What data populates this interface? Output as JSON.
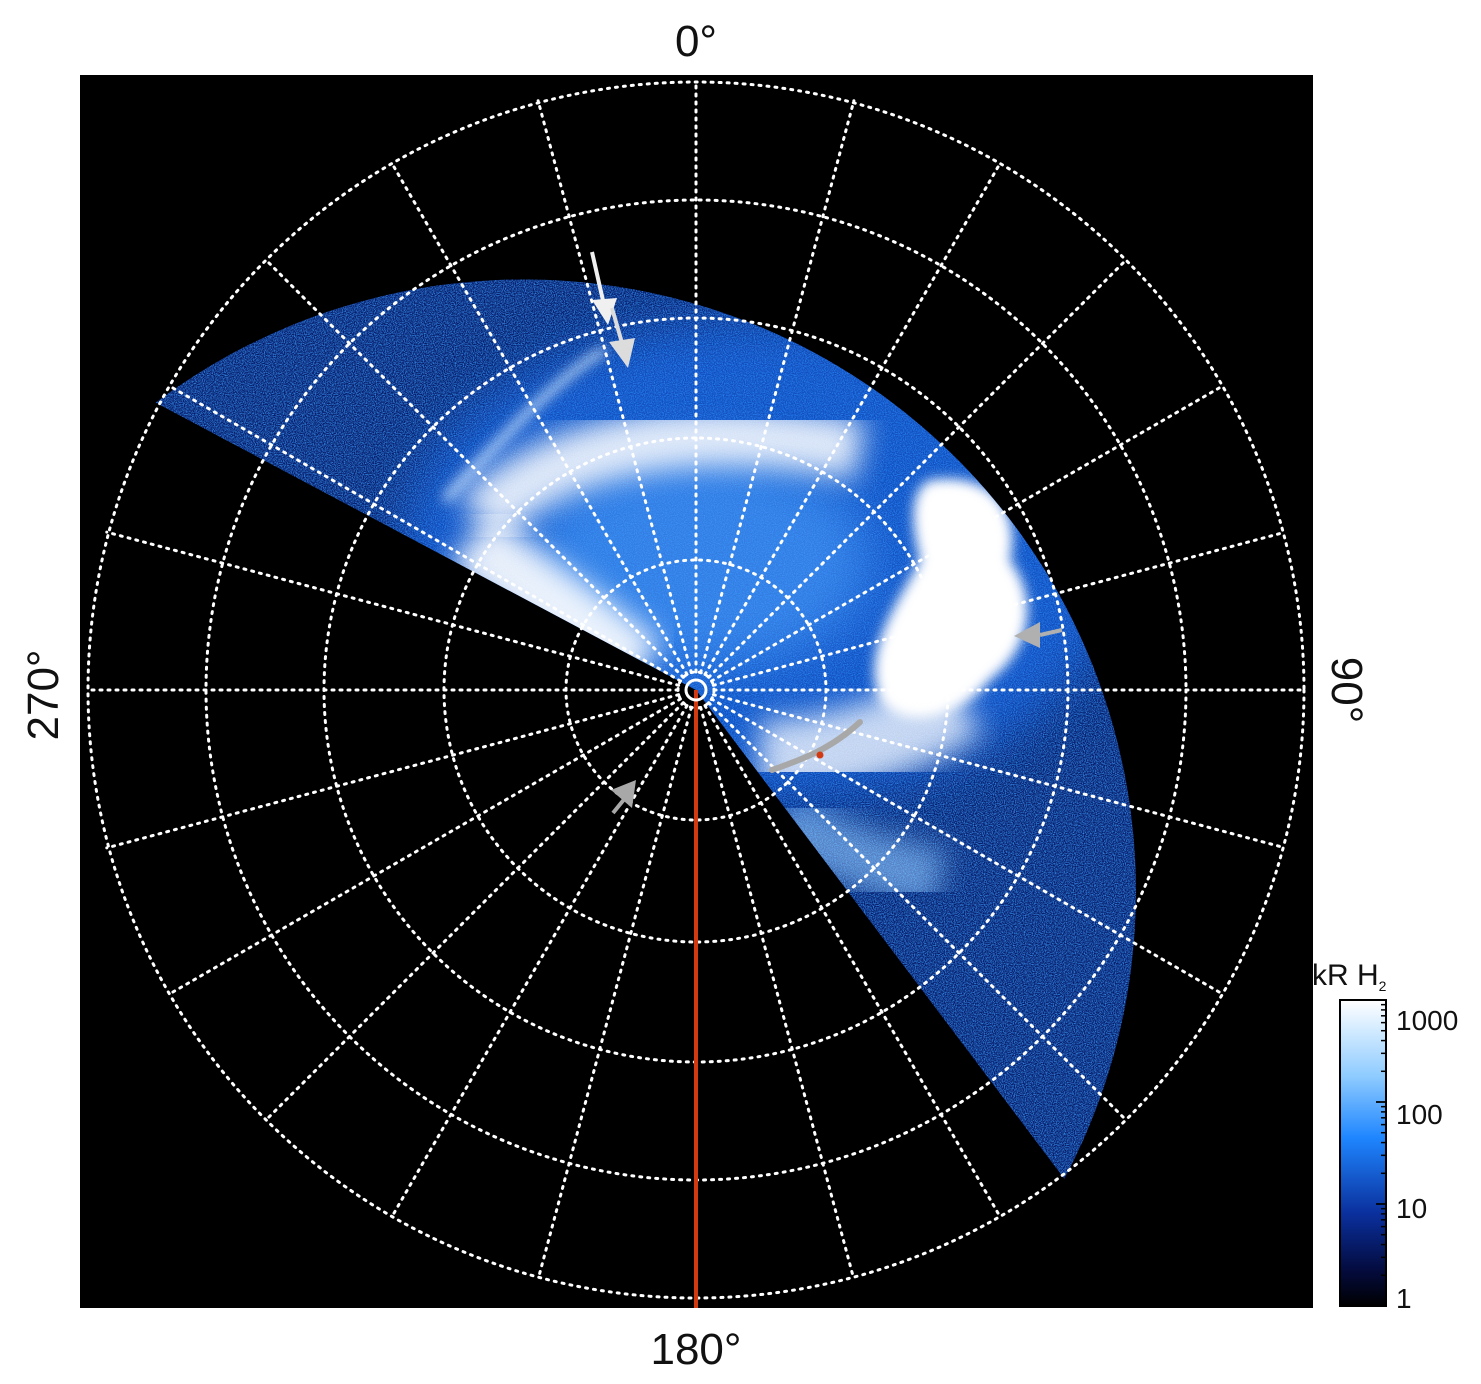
{
  "labels": {
    "north": "0°",
    "east": "90°",
    "south": "180°",
    "west": "270°"
  },
  "colorbar": {
    "unit_prefix": "kR H",
    "unit_subscript": "2",
    "ticks": [
      "1000",
      "100",
      "10",
      "1"
    ]
  },
  "colors": {
    "background": "#000000",
    "grid": "#ffffff",
    "meridian_line": "#d23a12",
    "arrow_white": "#f0f0f0",
    "arrow_gray": "#a8a8a8",
    "emission_bright": "#ffffff",
    "emission_mid": "#2a8cff",
    "emission_dim": "#0a2f8f"
  }
}
